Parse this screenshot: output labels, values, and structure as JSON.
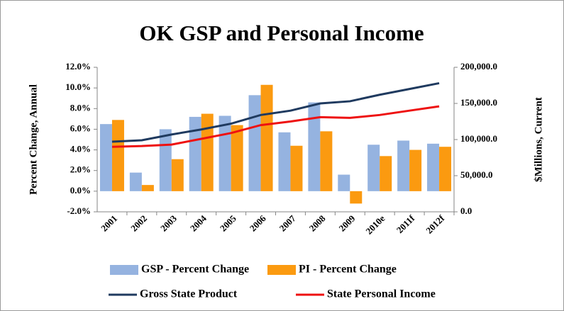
{
  "chart_data": {
    "type": "bar",
    "title": "OK GSP and Personal Income",
    "y_label": "Percent Change, Annual",
    "y2_label": "$Millions, Current",
    "categories": [
      "2001",
      "2002",
      "2003",
      "2004",
      "2005",
      "2006",
      "2007",
      "2008",
      "2009",
      "2010e",
      "2011f",
      "2012f"
    ],
    "series": [
      {
        "name": "GSP - Percent Change",
        "type": "bar",
        "color": "#95b3e0",
        "values": [
          6.5,
          1.8,
          6.0,
          7.2,
          7.3,
          9.3,
          5.7,
          8.6,
          1.6,
          4.5,
          4.9,
          4.6
        ]
      },
      {
        "name": "PI - Percent Change",
        "type": "bar",
        "color": "#fb9a10",
        "values": [
          6.9,
          0.6,
          3.1,
          7.5,
          6.4,
          10.3,
          4.4,
          5.8,
          -1.2,
          3.4,
          4.0,
          4.3
        ]
      },
      {
        "name": "Gross State Product",
        "type": "line",
        "axis": "y2",
        "color": "#1f3a5f",
        "values": [
          97000,
          99000,
          107000,
          114000,
          122000,
          134000,
          140000,
          150000,
          153000,
          162000,
          170000,
          178000
        ]
      },
      {
        "name": "State Personal Income",
        "type": "line",
        "axis": "y2",
        "color": "#ee1111",
        "values": [
          90000,
          91000,
          93000,
          101000,
          109000,
          120000,
          125000,
          131000,
          130000,
          134000,
          140000,
          146000
        ]
      }
    ],
    "ylim": [
      -2,
      12
    ],
    "yticks": [
      {
        "value": -2,
        "label": "-2.0%"
      },
      {
        "value": 0,
        "label": "0.0%"
      },
      {
        "value": 2,
        "label": "2.0%"
      },
      {
        "value": 4,
        "label": "4.0%"
      },
      {
        "value": 6,
        "label": "6.0%"
      },
      {
        "value": 8,
        "label": "8.0%"
      },
      {
        "value": 10,
        "label": "10.0%"
      },
      {
        "value": 12,
        "label": "12.0%"
      }
    ],
    "y2lim": [
      0,
      200000
    ],
    "y2ticks": [
      {
        "value": 0,
        "label": "0.0"
      },
      {
        "value": 50000,
        "label": "50,000.0"
      },
      {
        "value": 100000,
        "label": "100,000.0"
      },
      {
        "value": 150000,
        "label": "150,000.0"
      },
      {
        "value": 200000,
        "label": "200,000.0"
      }
    ],
    "grid": false
  }
}
